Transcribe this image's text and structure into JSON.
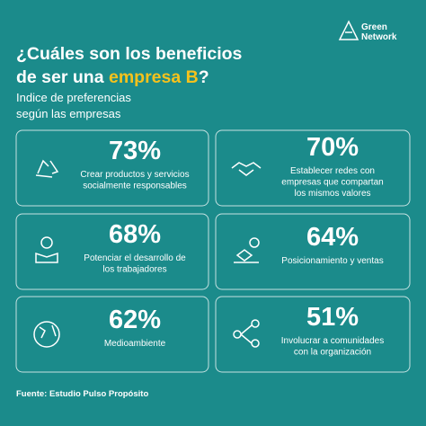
{
  "brand": {
    "line1": "Green",
    "line2": "Network"
  },
  "header": {
    "title_line1": "¿Cuáles son los beneficios",
    "title_line2_start": "de ser una ",
    "title_highlight": "empresa B",
    "title_end": "?",
    "subtitle": [
      "Indice de preferencias",
      "según las empresas"
    ]
  },
  "cards": [
    {
      "percent": "73%",
      "text": [
        "Crear productos y servicios",
        "socialmente responsables"
      ]
    },
    {
      "percent": "70%",
      "text": [
        "Establecer redes con",
        "empresas que compartan",
        "los mismos valores"
      ]
    },
    {
      "percent": "68%",
      "text": [
        "Potenciar el desarrollo de",
        "los trabajadores"
      ]
    },
    {
      "percent": "64%",
      "text": [
        "Posicionamiento y ventas"
      ]
    },
    {
      "percent": "62%",
      "text": [
        "Medioambiente"
      ]
    },
    {
      "percent": "51%",
      "text": [
        "Involucrar a comunidades",
        "con la organización"
      ]
    }
  ],
  "footer": "Fuente: Estudio Pulso Propósito"
}
